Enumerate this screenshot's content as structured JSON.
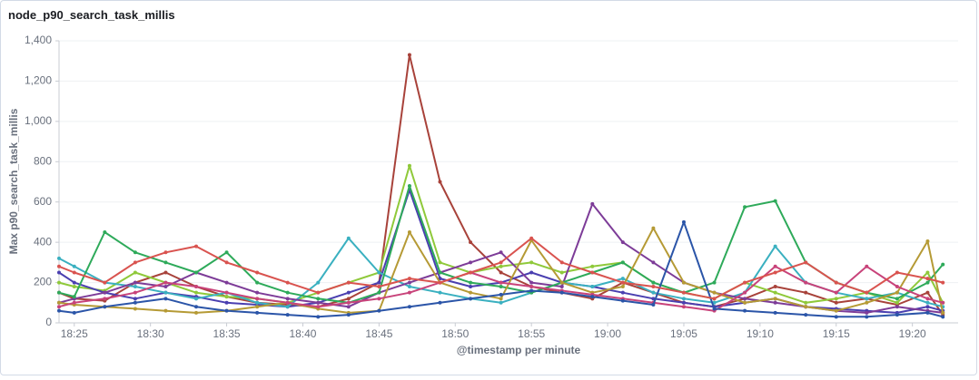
{
  "chart_data": {
    "type": "line",
    "title": "node_p90_search_task_millis",
    "x_label": "@timestamp per minute",
    "y_label": "Max p90_search_task_millis",
    "x": [
      "18:24",
      "18:25",
      "18:27",
      "18:29",
      "18:31",
      "18:33",
      "18:35",
      "18:37",
      "18:39",
      "18:41",
      "18:43",
      "18:45",
      "18:47",
      "18:49",
      "18:51",
      "18:53",
      "18:55",
      "18:57",
      "18:59",
      "19:01",
      "19:03",
      "19:05",
      "19:07",
      "19:09",
      "19:11",
      "19:13",
      "19:15",
      "19:17",
      "19:19",
      "19:21",
      "19:22"
    ],
    "xlim": [
      "18:24",
      "19:23"
    ],
    "xticks": [
      "18:25",
      "18:30",
      "18:35",
      "18:40",
      "18:45",
      "18:50",
      "18:55",
      "19:00",
      "19:05",
      "19:10",
      "19:15",
      "19:20"
    ],
    "ylim": [
      0,
      1400
    ],
    "yticks": [
      0,
      200,
      400,
      600,
      800,
      {
        "value": 1000,
        "label": "1,000"
      },
      {
        "value": 1200,
        "label": "1,200"
      },
      {
        "value": 1400,
        "label": "1,400"
      }
    ],
    "grid": true,
    "series": [
      {
        "color": "#a8423a",
        "values": [
          150,
          120,
          110,
          200,
          250,
          180,
          130,
          100,
          90,
          80,
          120,
          200,
          1330,
          700,
          400,
          250,
          180,
          150,
          120,
          200,
          150,
          100,
          80,
          120,
          180,
          150,
          100,
          120,
          90,
          150,
          40
        ]
      },
      {
        "color": "#8fc93a",
        "values": [
          200,
          180,
          160,
          250,
          200,
          150,
          130,
          120,
          100,
          150,
          200,
          250,
          780,
          300,
          250,
          280,
          300,
          250,
          280,
          300,
          200,
          150,
          120,
          200,
          150,
          100,
          120,
          150,
          100,
          250,
          100
        ]
      },
      {
        "color": "#4a3fb0",
        "values": [
          250,
          200,
          150,
          120,
          150,
          130,
          100,
          90,
          80,
          100,
          150,
          200,
          660,
          220,
          180,
          200,
          250,
          200,
          180,
          150,
          120,
          100,
          80,
          100,
          120,
          80,
          70,
          60,
          50,
          80,
          60
        ]
      },
      {
        "color": "#3ab0c0",
        "values": [
          320,
          280,
          200,
          180,
          150,
          120,
          150,
          100,
          80,
          200,
          420,
          250,
          180,
          150,
          120,
          100,
          150,
          200,
          180,
          220,
          150,
          120,
          100,
          150,
          380,
          200,
          150,
          120,
          150,
          100,
          80
        ]
      },
      {
        "color": "#7d3c98",
        "values": [
          100,
          120,
          150,
          200,
          180,
          250,
          200,
          150,
          120,
          100,
          80,
          150,
          200,
          250,
          300,
          350,
          200,
          180,
          590,
          400,
          300,
          200,
          150,
          120,
          100,
          80,
          60,
          50,
          80,
          60,
          50
        ]
      },
      {
        "color": "#2eaa5a",
        "values": [
          150,
          130,
          450,
          350,
          300,
          250,
          350,
          200,
          150,
          120,
          100,
          150,
          680,
          250,
          200,
          180,
          150,
          200,
          250,
          300,
          200,
          150,
          200,
          575,
          605,
          300,
          200,
          150,
          120,
          200,
          290
        ]
      },
      {
        "color": "#b59a35",
        "values": [
          100,
          90,
          80,
          70,
          60,
          50,
          60,
          80,
          100,
          70,
          50,
          60,
          450,
          200,
          150,
          120,
          410,
          200,
          150,
          180,
          470,
          200,
          150,
          100,
          120,
          80,
          60,
          100,
          150,
          405,
          50
        ]
      },
      {
        "color": "#c8437a",
        "values": [
          80,
          100,
          120,
          150,
          200,
          180,
          150,
          120,
          100,
          80,
          100,
          120,
          150,
          200,
          250,
          200,
          180,
          160,
          140,
          120,
          100,
          80,
          60,
          150,
          280,
          200,
          150,
          280,
          180,
          120,
          100
        ]
      },
      {
        "color": "#2b55a8",
        "values": [
          60,
          50,
          80,
          100,
          120,
          80,
          60,
          50,
          40,
          30,
          40,
          60,
          80,
          100,
          120,
          140,
          160,
          150,
          130,
          110,
          90,
          500,
          70,
          60,
          50,
          40,
          30,
          30,
          40,
          50,
          30
        ]
      },
      {
        "color": "#d9534f",
        "values": [
          280,
          250,
          200,
          300,
          350,
          380,
          300,
          250,
          200,
          150,
          200,
          180,
          220,
          200,
          250,
          300,
          420,
          300,
          250,
          200,
          180,
          150,
          120,
          200,
          250,
          300,
          200,
          150,
          250,
          220,
          200
        ]
      }
    ]
  }
}
